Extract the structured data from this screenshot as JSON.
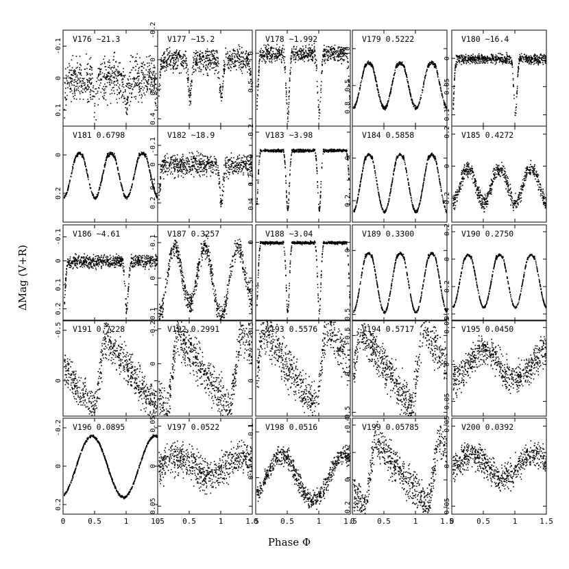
{
  "figure": {
    "ylabel": "ΔMag (V+R)",
    "xlabel": "Phase Φ",
    "x_ticks": [
      "0",
      "0.5",
      "1",
      "1.5"
    ],
    "ink_color": "#000000"
  },
  "chart_data": [
    {
      "id": "V176",
      "period": "~21.3",
      "type": "scatter",
      "xlim": [
        0,
        1.5
      ],
      "y_ticks": [
        "-0.1",
        "0",
        "0.1"
      ],
      "ylim": [
        -0.15,
        0.15
      ],
      "shape": "noisy",
      "base": 0.0,
      "amp": 0.12,
      "dip_depth": 0.08,
      "dips": [
        0.5,
        1.0
      ]
    },
    {
      "id": "V177",
      "period": "~15.2",
      "type": "scatter",
      "xlim": [
        0,
        1.5
      ],
      "y_ticks": [
        "-0.2",
        "0",
        "0.2",
        "0.4"
      ],
      "ylim": [
        -0.2,
        0.45
      ],
      "shape": "noisy",
      "base": 0.0,
      "amp": 0.15,
      "dip_depth": 0.25,
      "dips": [
        0.5,
        1.0
      ]
    },
    {
      "id": "V178",
      "period": "~1.992",
      "type": "scatter",
      "xlim": [
        0,
        1.5
      ],
      "y_ticks": [
        "0",
        "0.5"
      ],
      "ylim": [
        -0.35,
        1.1
      ],
      "shape": "eclipse_narrow",
      "base": 0.0,
      "amp": 0.3,
      "dip_depth": 0.9,
      "dips": [
        0.5,
        1.0
      ]
    },
    {
      "id": "V179",
      "period": "0.5222",
      "type": "scatter",
      "xlim": [
        0,
        1.5
      ],
      "y_ticks": [
        "0",
        "0.5",
        "0.8"
      ],
      "ylim": [
        -0.25,
        1.05
      ],
      "shape": "eclipse_wide",
      "base": 0.0,
      "amp": 0.06,
      "dip_depth": 0.8,
      "dips": [
        0.5,
        1.0
      ]
    },
    {
      "id": "V180",
      "period": "~16.4",
      "type": "scatter",
      "xlim": [
        0,
        1.5
      ],
      "y_ticks": [
        "0",
        "0.05",
        "0.1"
      ],
      "ylim": [
        -0.05,
        0.12
      ],
      "shape": "eclipse_narrow",
      "base": 0.0,
      "amp": 0.02,
      "dip_depth": 0.1,
      "dips": [
        1.0
      ]
    },
    {
      "id": "V181",
      "period": "0.6798",
      "type": "scatter",
      "xlim": [
        0,
        1.5
      ],
      "y_ticks": [
        "0",
        "0.2"
      ],
      "ylim": [
        -0.15,
        0.35
      ],
      "shape": "eclipse_wide",
      "base": -0.08,
      "amp": 0.02,
      "dip_depth": 0.3,
      "dips": [
        0.5,
        1.0
      ]
    },
    {
      "id": "V182",
      "period": "~18.9",
      "type": "scatter",
      "xlim": [
        0,
        1.5
      ],
      "y_ticks": [
        "-0.1",
        "0",
        "0.1",
        "0.2"
      ],
      "ylim": [
        -0.2,
        0.3
      ],
      "shape": "noisy",
      "base": 0.0,
      "amp": 0.1,
      "dip_depth": 0.2,
      "dips": [
        1.0
      ]
    },
    {
      "id": "V183",
      "period": "~3.98",
      "type": "scatter",
      "xlim": [
        0,
        1.5
      ],
      "y_ticks": [
        "-0.2",
        "0",
        "0.2",
        "0.4"
      ],
      "ylim": [
        -0.25,
        0.55
      ],
      "shape": "eclipse_narrow",
      "base": -0.05,
      "amp": 0.03,
      "dip_depth": 0.5,
      "dips": [
        0.5,
        1.0
      ]
    },
    {
      "id": "V184",
      "period": "0.5858",
      "type": "scatter",
      "xlim": [
        0,
        1.5
      ],
      "y_ticks": [
        "0",
        "0.2"
      ],
      "ylim": [
        -0.15,
        0.3
      ],
      "shape": "eclipse_wide",
      "base": -0.1,
      "amp": 0.015,
      "dip_depth": 0.35,
      "dips": [
        0.5,
        1.0
      ]
    },
    {
      "id": "V185",
      "period": "0.4272",
      "type": "scatter",
      "xlim": [
        0,
        1.5
      ],
      "y_ticks": [
        "-0.2",
        "0",
        "0.2"
      ],
      "ylim": [
        -0.25,
        0.35
      ],
      "shape": "eclipse_wide",
      "base": -0.05,
      "amp": 0.12,
      "dip_depth": 0.28,
      "dips": [
        0.5,
        1.0
      ]
    },
    {
      "id": "V186",
      "period": "~4.61",
      "type": "scatter",
      "xlim": [
        0,
        1.5
      ],
      "y_ticks": [
        "-0.1",
        "0",
        "0.1",
        "0.2"
      ],
      "ylim": [
        -0.15,
        0.25
      ],
      "shape": "noisy",
      "base": 0.0,
      "amp": 0.05,
      "dip_depth": 0.2,
      "dips": [
        1.0
      ]
    },
    {
      "id": "V187",
      "period": "0.3257",
      "type": "scatter",
      "xlim": [
        0,
        1.5
      ],
      "y_ticks": [
        "-0.1",
        "0",
        "0.1"
      ],
      "ylim": [
        -0.15,
        0.12
      ],
      "shape": "double_wave",
      "base": 0.0,
      "amp": 0.09,
      "dip_depth": 0.0,
      "dips": []
    },
    {
      "id": "V188",
      "period": "~3.04",
      "type": "scatter",
      "xlim": [
        0,
        1.5
      ],
      "y_ticks": [
        "0",
        "0.5"
      ],
      "ylim": [
        -0.2,
        0.9
      ],
      "shape": "eclipse_narrow",
      "base": 0.0,
      "amp": 0.04,
      "dip_depth": 0.8,
      "dips": [
        0.5,
        1.0
      ]
    },
    {
      "id": "V189",
      "period": "0.3300",
      "type": "scatter",
      "xlim": [
        0,
        1.5
      ],
      "y_ticks": [
        "0",
        "0.5"
      ],
      "ylim": [
        -0.2,
        0.55
      ],
      "shape": "eclipse_wide",
      "base": -0.12,
      "amp": 0.02,
      "dip_depth": 0.6,
      "dips": [
        0.5,
        1.0
      ]
    },
    {
      "id": "V190",
      "period": "0.2750",
      "type": "scatter",
      "xlim": [
        0,
        1.5
      ],
      "y_ticks": [
        "-0.2",
        "0",
        "0.2",
        "0.4"
      ],
      "ylim": [
        -0.25,
        0.45
      ],
      "shape": "eclipse_wide",
      "base": -0.15,
      "amp": 0.015,
      "dip_depth": 0.5,
      "dips": [
        0.5,
        1.0
      ]
    },
    {
      "id": "V191",
      "period": "0.7228",
      "type": "scatter",
      "xlim": [
        0,
        1.5
      ],
      "y_ticks": [
        "-0.5",
        "0"
      ],
      "ylim": [
        -0.6,
        0.35
      ],
      "shape": "rrab",
      "peak": 0.65,
      "amp": 0.75,
      "offset": -0.45,
      "dip_depth": 0.0,
      "dips": []
    },
    {
      "id": "V192",
      "period": "0.2991",
      "type": "scatter",
      "xlim": [
        0,
        1.5
      ],
      "y_ticks": [
        "-0.2",
        "0",
        "0.2"
      ],
      "ylim": [
        -0.25,
        0.3
      ],
      "shape": "rrab",
      "peak": 0.3,
      "amp": 0.45,
      "offset": -0.18,
      "dip_depth": 0.0,
      "dips": []
    },
    {
      "id": "V193",
      "period": "0.5576",
      "type": "scatter",
      "xlim": [
        0,
        1.5
      ],
      "y_ticks": [
        "-0.5",
        "0"
      ],
      "ylim": [
        -0.6,
        0.35
      ],
      "shape": "rrab",
      "peak": 0.1,
      "amp": 0.85,
      "offset": -0.55,
      "dip_depth": 0.0,
      "dips": []
    },
    {
      "id": "V194",
      "period": "0.5717",
      "type": "scatter",
      "xlim": [
        0,
        1.5
      ],
      "y_ticks": [
        "-0.5",
        "0",
        "0.5"
      ],
      "ylim": [
        -0.7,
        0.55
      ],
      "shape": "rrab",
      "peak": 0.1,
      "amp": 1.05,
      "offset": -0.6,
      "dip_depth": 0.0,
      "dips": []
    },
    {
      "id": "V195",
      "period": "0.0450",
      "type": "scatter",
      "xlim": [
        0,
        1.5
      ],
      "y_ticks": [
        "-0.05",
        "0",
        "0.05"
      ],
      "ylim": [
        -0.06,
        0.07
      ],
      "shape": "sine",
      "peak": 0.5,
      "amp": 0.02,
      "noise": 0.03
    },
    {
      "id": "V196",
      "period": "0.0895",
      "type": "scatter",
      "xlim": [
        0,
        1.5
      ],
      "y_ticks": [
        "-0.2",
        "0",
        "0.2"
      ],
      "ylim": [
        -0.25,
        0.25
      ],
      "shape": "sine",
      "peak": 0.45,
      "amp": 0.16,
      "noise": 0.01
    },
    {
      "id": "V197",
      "period": "0.0522",
      "type": "scatter",
      "xlim": [
        0,
        1.5
      ],
      "y_ticks": [
        "-0.05",
        "0",
        "0.05"
      ],
      "ylim": [
        -0.06,
        0.06
      ],
      "shape": "sine",
      "peak": 0.3,
      "amp": 0.012,
      "noise": 0.03
    },
    {
      "id": "V198",
      "period": "0.0516",
      "type": "scatter",
      "xlim": [
        0,
        1.5
      ],
      "y_ticks": [
        "-0.1",
        "0"
      ],
      "ylim": [
        -0.13,
        0.08
      ],
      "shape": "sine",
      "peak": 0.4,
      "amp": 0.05,
      "noise": 0.03
    },
    {
      "id": "V199",
      "period": "0.05785",
      "type": "scatter",
      "xlim": [
        0,
        1.5
      ],
      "y_ticks": [
        "-0.4",
        "-0.2",
        "0",
        "0.2"
      ],
      "ylim": [
        -0.45,
        0.25
      ],
      "shape": "rrab",
      "peak": 0.35,
      "amp": 0.5,
      "offset": -0.3,
      "dip_depth": 0.0,
      "dips": []
    },
    {
      "id": "V200",
      "period": "0.0392",
      "type": "scatter",
      "xlim": [
        0,
        1.5
      ],
      "y_ticks": [
        "-0.05",
        "0",
        "0.05"
      ],
      "ylim": [
        -0.06,
        0.06
      ],
      "shape": "sine",
      "peak": 0.3,
      "amp": 0.015,
      "noise": 0.025
    }
  ]
}
